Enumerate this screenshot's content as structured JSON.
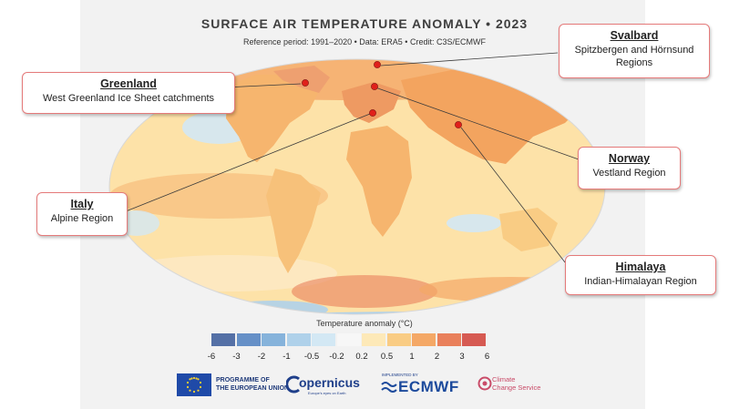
{
  "header": {
    "title": "SURFACE AIR TEMPERATURE ANOMALY • 2023",
    "subtitle": "Reference period: 1991–2020 • Data: ERA5 • Credit: C3S/ECMWF"
  },
  "callouts": {
    "greenland": {
      "name": "Greenland",
      "desc": "West Greenland Ice Sheet catchments"
    },
    "svalbard": {
      "name": "Svalbard",
      "desc1": "Spitzbergen and Hörnsund",
      "desc2": "Regions"
    },
    "norway": {
      "name": "Norway",
      "desc": "Vestland Region"
    },
    "italy": {
      "name": "Italy",
      "desc": "Alpine Region"
    },
    "himalaya": {
      "name": "Himalaya",
      "desc": "Indian-Himalayan Region"
    }
  },
  "colorbar": {
    "title": "Temperature anomaly (°C)",
    "labels": [
      "-6",
      "-3",
      "-2",
      "-1",
      "-0.5",
      "-0.2",
      "0.2",
      "0.5",
      "1",
      "2",
      "3",
      "6"
    ],
    "colors": [
      "#5470a6",
      "#6690c7",
      "#86b3db",
      "#afd1ea",
      "#d3e8f4",
      "#f7f7f7",
      "#fde9b8",
      "#f9cc84",
      "#f4a866",
      "#e9805b",
      "#d65a52"
    ]
  },
  "colors": {
    "callout_border": "#e57a7a",
    "marker": "#e0201b",
    "ocean_warm": "#fde2a8",
    "land_warm": "#f6b56e",
    "hot": "#e46d54"
  },
  "logos": {
    "eu_line1": "PROGRAMME OF",
    "eu_line2": "THE EUROPEAN UNION",
    "copernicus": "opernicus",
    "copernicus_sub": "Europe's eyes on Earth",
    "ecmwf_small": "IMPLEMENTED BY",
    "ecmwf": "ECMWF",
    "c3s_line1": "Climate",
    "c3s_line2": "Change Service"
  }
}
